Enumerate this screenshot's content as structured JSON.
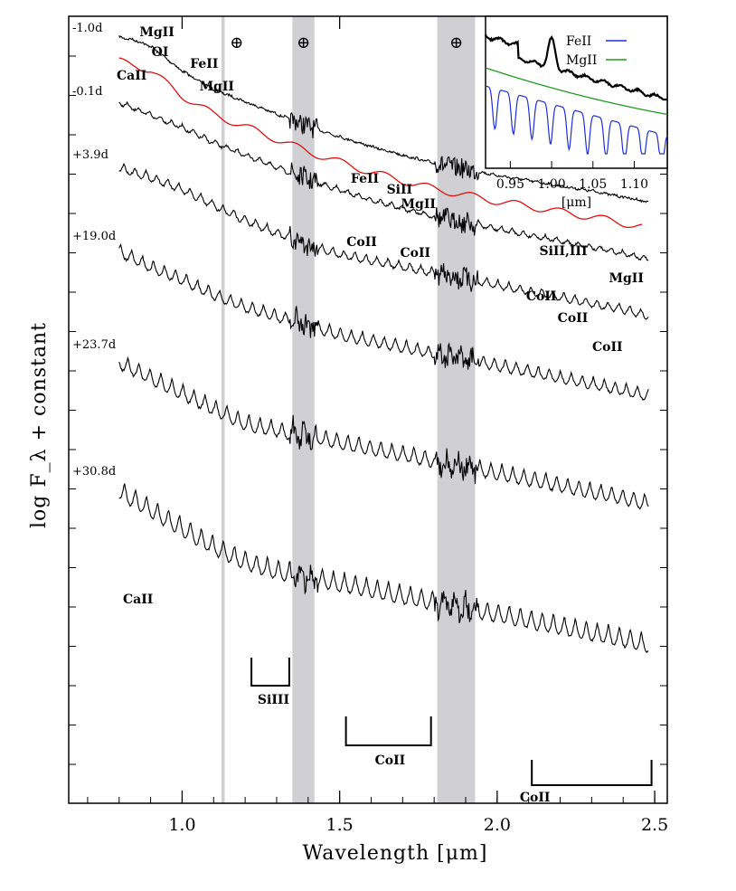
{
  "chart_data": {
    "type": "line",
    "xlabel": "Wavelength [μm]",
    "ylabel": "log F_λ + constant",
    "xlim": [
      0.64,
      2.54
    ],
    "xticks": [
      "1.0",
      "1.5",
      "2.0",
      "2.5"
    ],
    "telluric_symbol": "⊕",
    "telluric_bands": [
      [
        1.125,
        1.135
      ],
      [
        1.35,
        1.42
      ],
      [
        1.81,
        1.93
      ]
    ],
    "series": [
      {
        "name": "-1.0d",
        "x": [
          0.8,
          0.85,
          0.9,
          0.95,
          1.0,
          1.1,
          1.2,
          1.3,
          1.4,
          1.5,
          1.6,
          1.7,
          1.8,
          1.9,
          2.0,
          2.1,
          2.2,
          2.3,
          2.4,
          2.48
        ],
        "y": [
          0.0,
          -0.05,
          -0.15,
          -0.35,
          -0.55,
          -0.85,
          -1.05,
          -1.25,
          -1.45,
          -1.62,
          -1.78,
          -1.92,
          -2.05,
          -2.15,
          -2.25,
          -2.33,
          -2.42,
          -2.5,
          -2.6,
          -2.68
        ]
      },
      {
        "name": "-0.1d",
        "x": [
          0.8,
          0.9,
          1.0,
          1.1,
          1.2,
          1.3,
          1.4,
          1.5,
          1.6,
          1.7,
          1.8,
          1.9,
          2.0,
          2.1,
          2.2,
          2.3,
          2.4,
          2.48
        ],
        "y": [
          -0.7,
          -0.9,
          -1.1,
          -1.35,
          -1.55,
          -1.75,
          -1.95,
          -2.12,
          -2.28,
          -2.42,
          -2.55,
          -2.65,
          -2.75,
          -2.85,
          -2.95,
          -3.05,
          -3.15,
          -3.25
        ]
      },
      {
        "name": "+3.9d",
        "x": [
          0.8,
          0.9,
          1.0,
          1.1,
          1.2,
          1.3,
          1.4,
          1.5,
          1.6,
          1.7,
          1.8,
          1.9,
          2.0,
          2.1,
          2.2,
          2.3,
          2.4,
          2.48
        ],
        "y": [
          -1.7,
          -1.85,
          -2.05,
          -2.3,
          -2.55,
          -2.75,
          -2.95,
          -3.1,
          -3.2,
          -3.3,
          -3.4,
          -3.5,
          -3.6,
          -3.7,
          -3.8,
          -3.9,
          -4.0,
          -4.1
        ]
      },
      {
        "name": "+19.0d",
        "x": [
          0.8,
          0.9,
          1.0,
          1.1,
          1.2,
          1.3,
          1.4,
          1.5,
          1.6,
          1.7,
          1.8,
          1.9,
          2.0,
          2.1,
          2.2,
          2.3,
          2.4,
          2.48
        ],
        "y": [
          -2.6,
          -2.85,
          -3.05,
          -3.3,
          -3.5,
          -3.65,
          -3.8,
          -3.95,
          -4.05,
          -4.15,
          -4.25,
          -4.35,
          -4.45,
          -4.55,
          -4.65,
          -4.75,
          -4.85,
          -4.95
        ]
      },
      {
        "name": "+23.7d",
        "x": [
          0.8,
          0.9,
          1.0,
          1.1,
          1.2,
          1.3,
          1.4,
          1.5,
          1.6,
          1.7,
          1.8,
          1.9,
          2.0,
          2.1,
          2.2,
          2.3,
          2.4,
          2.48
        ],
        "y": [
          -3.3,
          -3.55,
          -3.8,
          -4.05,
          -4.3,
          -4.4,
          -4.5,
          -4.6,
          -4.7,
          -4.8,
          -4.9,
          -5.0,
          -5.1,
          -5.2,
          -5.3,
          -5.4,
          -5.5,
          -5.6
        ]
      },
      {
        "name": "+30.8d",
        "x": [
          0.8,
          0.9,
          1.0,
          1.1,
          1.2,
          1.3,
          1.4,
          1.5,
          1.6,
          1.7,
          1.8,
          1.9,
          2.0,
          2.1,
          2.2,
          2.3,
          2.4,
          2.48
        ],
        "y": [
          -4.2,
          -4.5,
          -4.8,
          -5.1,
          -5.35,
          -5.5,
          -5.6,
          -5.7,
          -5.8,
          -5.9,
          -6.0,
          -6.1,
          -6.2,
          -6.3,
          -6.4,
          -6.5,
          -6.6,
          -6.7
        ]
      }
    ],
    "line_ids": [
      {
        "label": "CaII",
        "x": 0.84
      },
      {
        "label": "MgII",
        "x": 0.92
      },
      {
        "label": "OI",
        "x": 0.93
      },
      {
        "label": "FeII",
        "x": 1.07
      },
      {
        "label": "MgII",
        "x": 1.11
      },
      {
        "label": "FeII",
        "x": 1.58
      },
      {
        "label": "SiII",
        "x": 1.69
      },
      {
        "label": "MgII",
        "x": 1.75
      },
      {
        "label": "CoII",
        "x": 1.57
      },
      {
        "label": "CoII",
        "x": 1.74
      },
      {
        "label": "SiII,III",
        "x": 2.21
      },
      {
        "label": "CoII",
        "x": 2.14
      },
      {
        "label": "CoII",
        "x": 2.24
      },
      {
        "label": "CoII",
        "x": 2.35
      },
      {
        "label": "MgII",
        "x": 2.41
      },
      {
        "label": "CaII",
        "x": 0.86
      },
      {
        "label": "SiIII",
        "x": 1.29
      },
      {
        "label": "CoII",
        "x": 1.66
      },
      {
        "label": "CoII",
        "x": 2.12
      }
    ],
    "brackets": [
      {
        "label": "SiIII",
        "x0": 1.22,
        "x1": 1.34
      },
      {
        "label": "CoII",
        "x0": 1.52,
        "x1": 1.79
      },
      {
        "label": "CoII",
        "x0": 2.11,
        "x1": 2.49
      }
    ],
    "inset": {
      "xlabel": "[μm]",
      "xticks": [
        "0.95",
        "1.00",
        "1.05",
        "1.10"
      ],
      "xlim": [
        0.92,
        1.14
      ],
      "legend": [
        {
          "name": "FeII",
          "color": "#1f2fd6"
        },
        {
          "name": "MgII",
          "color": "#1e9a1e"
        }
      ]
    },
    "colors": {
      "model": "#e01010",
      "data": "#000000",
      "telluric": "#d0d0d4"
    }
  }
}
